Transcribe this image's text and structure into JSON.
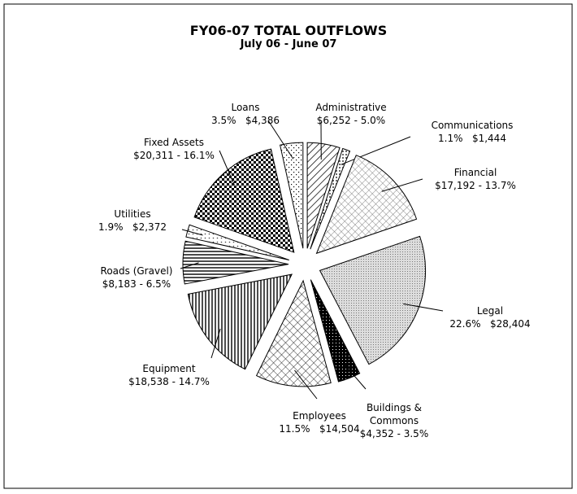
{
  "chart_data": {
    "type": "pie",
    "title": "FY06-07 TOTAL OUTFLOWS",
    "subtitle": "July 06 - June 07",
    "categories": [
      "Administrative",
      "Communications",
      "Financial",
      "Legal",
      "Buildings & Commons",
      "Employees",
      "Equipment",
      "Roads (Gravel)",
      "Utilities",
      "Fixed Assets",
      "Loans"
    ],
    "values": [
      6252,
      1444,
      17192,
      28404,
      4352,
      14504,
      18538,
      8183,
      2372,
      20311,
      4386
    ],
    "value_labels": [
      "$6,252 - 5.0%",
      "1.1%   $1,444",
      "$17,192 - 13.7%",
      "22.6%   $28,404",
      "$4,352 - 3.5%",
      "11.5%   $14,504",
      "$18,538 - 14.7%",
      "$8,183 - 6.5%",
      "1.9%   $2,372",
      "$20,311 - 16.1%",
      "3.5%   $4,386"
    ],
    "exploded": true
  }
}
